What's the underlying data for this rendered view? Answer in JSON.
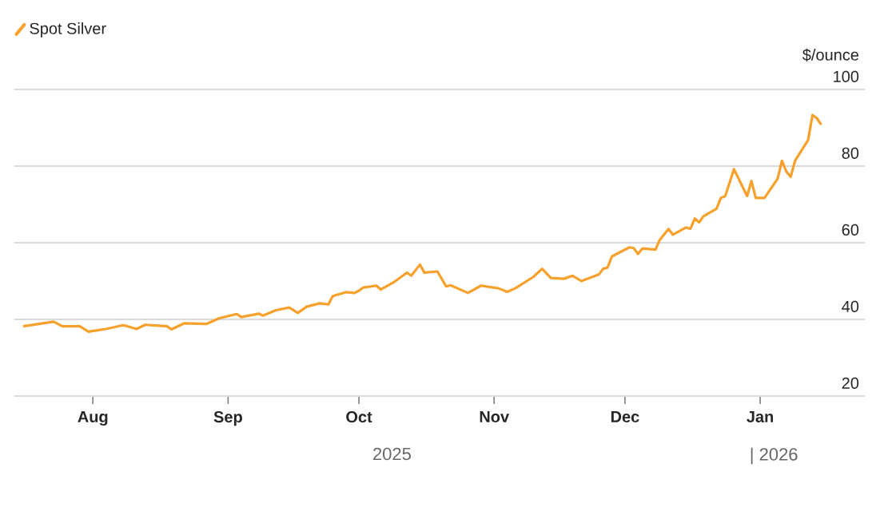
{
  "chart_data": {
    "type": "line",
    "ylabel": "$/ounce",
    "annotations": [
      "2025",
      "| 2026"
    ],
    "legend": "top left",
    "grid": "y",
    "xlim": [
      "2025-07-14",
      "2026-01-25"
    ],
    "ylim": [
      20,
      100
    ],
    "yticks": [
      20,
      40,
      60,
      80,
      100
    ],
    "xticks": [
      {
        "value": "2025-08-01",
        "label": "Aug"
      },
      {
        "value": "2025-09-01",
        "label": "Sep"
      },
      {
        "value": "2025-10-01",
        "label": "Oct"
      },
      {
        "value": "2025-11-01",
        "label": "Nov"
      },
      {
        "value": "2025-12-01",
        "label": "Dec"
      },
      {
        "value": "2026-01-01",
        "label": "Jan"
      }
    ],
    "series": [
      {
        "name": "Spot Silver",
        "color": "#f7a12c",
        "x": [
          "2025-07-16",
          "2025-07-23",
          "2025-07-25",
          "2025-07-29",
          "2025-07-31",
          "2025-08-04",
          "2025-08-08",
          "2025-08-11",
          "2025-08-13",
          "2025-08-18",
          "2025-08-19",
          "2025-08-22",
          "2025-08-27",
          "2025-08-30",
          "2025-09-03",
          "2025-09-04",
          "2025-09-08",
          "2025-09-09",
          "2025-09-12",
          "2025-09-15",
          "2025-09-17",
          "2025-09-19",
          "2025-09-22",
          "2025-09-24",
          "2025-09-25",
          "2025-09-28",
          "2025-09-30",
          "2025-10-01",
          "2025-10-02",
          "2025-10-05",
          "2025-10-06",
          "2025-10-09",
          "2025-10-12",
          "2025-10-13",
          "2025-10-15",
          "2025-10-16",
          "2025-10-19",
          "2025-10-21",
          "2025-10-22",
          "2025-10-26",
          "2025-10-29",
          "2025-11-02",
          "2025-11-04",
          "2025-11-06",
          "2025-11-10",
          "2025-11-12",
          "2025-11-14",
          "2025-11-17",
          "2025-11-19",
          "2025-11-21",
          "2025-11-25",
          "2025-11-26",
          "2025-11-27",
          "2025-11-28",
          "2025-12-02",
          "2025-12-03",
          "2025-12-04",
          "2025-12-05",
          "2025-12-08",
          "2025-12-09",
          "2025-12-11",
          "2025-12-12",
          "2025-12-15",
          "2025-12-16",
          "2025-12-17",
          "2025-12-18",
          "2025-12-19",
          "2025-12-22",
          "2025-12-23",
          "2025-12-24",
          "2025-12-26",
          "2025-12-29",
          "2025-12-30",
          "2025-12-31",
          "2026-01-02",
          "2026-01-05",
          "2026-01-06",
          "2026-01-07",
          "2026-01-08",
          "2026-01-09",
          "2026-01-12",
          "2026-01-13",
          "2026-01-14",
          "2026-01-15"
        ],
        "values": [
          38.2,
          39.4,
          38.2,
          38.2,
          36.8,
          37.5,
          38.5,
          37.5,
          38.6,
          38.2,
          37.4,
          39,
          38.8,
          40.3,
          41.4,
          40.6,
          41.5,
          41,
          42.4,
          43.1,
          41.7,
          43.3,
          44.2,
          43.9,
          46.1,
          47.1,
          46.9,
          47.5,
          48.3,
          48.8,
          47.8,
          49.7,
          52.2,
          51.4,
          54.3,
          52.2,
          52.5,
          48.6,
          48.9,
          46.9,
          48.8,
          48.1,
          47.2,
          48.2,
          51.1,
          53.2,
          50.8,
          50.6,
          51.4,
          50,
          51.7,
          53.2,
          53.5,
          56.4,
          58.8,
          58.6,
          57.1,
          58.5,
          58.2,
          60.8,
          63.6,
          62.1,
          64,
          63.6,
          66.3,
          65.3,
          66.9,
          68.9,
          71.7,
          72.2,
          79.2,
          72.2,
          76.1,
          71.7,
          71.7,
          76.7,
          81.4,
          78.6,
          77.2,
          81.4,
          86.8,
          93.3,
          92.5,
          90.8
        ]
      }
    ]
  }
}
